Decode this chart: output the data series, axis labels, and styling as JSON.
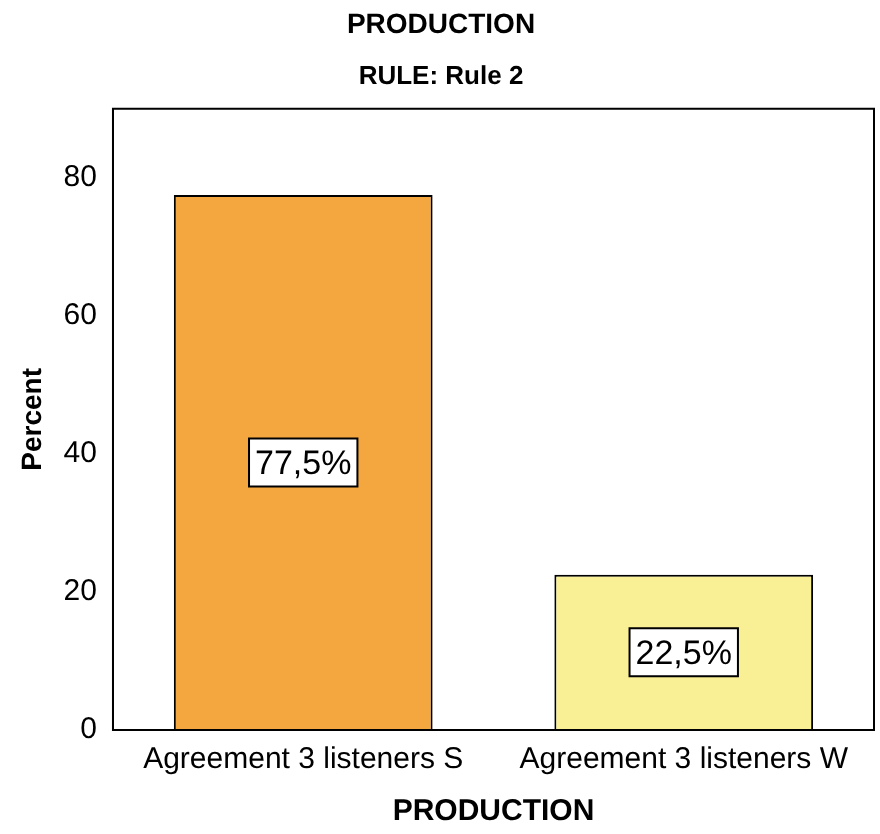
{
  "chart_data": {
    "type": "bar",
    "title": "PRODUCTION",
    "subtitle": "RULE: Rule 2",
    "xlabel": "PRODUCTION",
    "ylabel": "Percent",
    "categories": [
      "Agreement 3 listeners S",
      "Agreement 3 listeners W"
    ],
    "values": [
      77.5,
      22.5
    ],
    "colors": [
      "#f5a73f",
      "#f9ef94"
    ],
    "value_labels": [
      "77,5%",
      "22,5%"
    ],
    "ylim": [
      0,
      90
    ],
    "yticks": [
      0,
      20,
      40,
      60,
      80
    ],
    "grid": false,
    "legend": false
  }
}
